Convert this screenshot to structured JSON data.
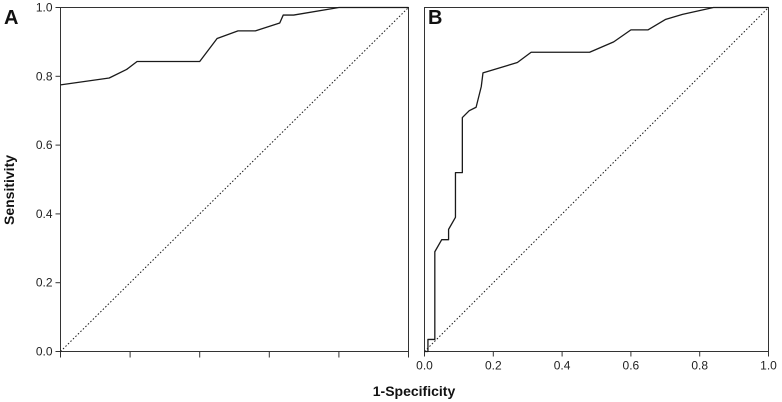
{
  "figure": {
    "ylabel": "Sensitivity",
    "xlabel": "1-Specificity"
  },
  "colors": {
    "curve": "#1a1a1a",
    "diagonal": "#1a1a1a",
    "frame": "#333333"
  },
  "chart_data": [
    {
      "type": "line",
      "panel_label": "A",
      "xlim": [
        0,
        1
      ],
      "ylim": [
        0,
        1
      ],
      "x_tick_labels": [],
      "y_tick_labels": [
        "0.0",
        "0.2",
        "0.4",
        "0.6",
        "0.8",
        "1.0"
      ],
      "grid": false,
      "reference_line": "diagonal (dotted)",
      "series": [
        {
          "x": [
            0.0,
            0.14,
            0.19,
            0.22,
            0.4,
            0.45,
            0.51,
            0.56,
            0.63,
            0.64,
            0.67,
            0.8,
            1.0
          ],
          "y": [
            0.775,
            0.795,
            0.82,
            0.843,
            0.843,
            0.91,
            0.932,
            0.932,
            0.955,
            0.978,
            0.978,
            1.0,
            1.0
          ]
        }
      ]
    },
    {
      "type": "line",
      "panel_label": "B",
      "xlim": [
        0,
        1
      ],
      "ylim": [
        0,
        1
      ],
      "x_tick_labels": [
        "0.0",
        "0.2",
        "0.4",
        "0.6",
        "0.8",
        "1.0"
      ],
      "y_tick_labels": [],
      "grid": false,
      "reference_line": "diagonal (dotted)",
      "series": [
        {
          "x": [
            0.0,
            0.01,
            0.01,
            0.03,
            0.03,
            0.05,
            0.07,
            0.07,
            0.09,
            0.09,
            0.11,
            0.11,
            0.13,
            0.15,
            0.165,
            0.17,
            0.27,
            0.31,
            0.48,
            0.55,
            0.6,
            0.65,
            0.7,
            0.75,
            0.84,
            1.0
          ],
          "y": [
            0.0,
            0.0,
            0.035,
            0.035,
            0.29,
            0.325,
            0.325,
            0.355,
            0.39,
            0.52,
            0.52,
            0.68,
            0.7,
            0.71,
            0.77,
            0.81,
            0.84,
            0.87,
            0.87,
            0.9,
            0.935,
            0.935,
            0.965,
            0.98,
            1.0,
            1.0
          ]
        }
      ]
    }
  ]
}
